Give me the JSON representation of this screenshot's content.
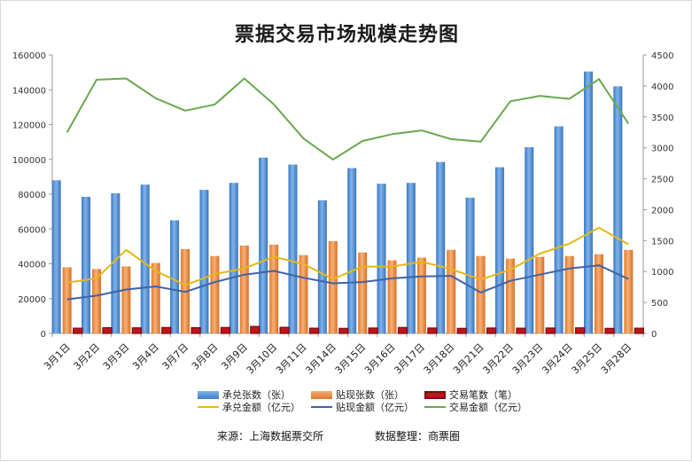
{
  "colors": {
    "acceptance_count": "#4f8fd6",
    "discount_count": "#ee8b3e",
    "trade_count": "#c0141b",
    "acceptance_amount": "#e5b812",
    "discount_amount": "#3f63a8",
    "trade_amount": "#6aa84f"
  },
  "chart_data": {
    "type": "bar",
    "title": "票据交易市场规模走势图",
    "categories": [
      "3月1日",
      "3月2日",
      "3月3日",
      "3月4日",
      "3月7日",
      "3月8日",
      "3月9日",
      "3月10日",
      "3月11日",
      "3月14日",
      "3月15日",
      "3月16日",
      "3月17日",
      "3月18日",
      "3月21日",
      "3月22日",
      "3月23日",
      "3月24日",
      "3月25日",
      "3月28日"
    ],
    "left_axis": {
      "min": 0,
      "max": 160000,
      "step": 20000,
      "ticks": [
        "0",
        "20000",
        "40000",
        "60000",
        "80000",
        "100000",
        "120000",
        "140000",
        "160000"
      ]
    },
    "right_axis": {
      "min": 0,
      "max": 4500,
      "step": 500,
      "ticks": [
        "0",
        "500",
        "1000",
        "1500",
        "2000",
        "2500",
        "3000",
        "3500",
        "4000",
        "4500"
      ]
    },
    "grid": false,
    "legend_position": "bottom",
    "series": [
      {
        "name": "承兑张数（张）",
        "type": "bar",
        "axis": "left",
        "values": [
          88000,
          78500,
          80500,
          85500,
          65000,
          82500,
          86500,
          101000,
          97000,
          76500,
          95000,
          86000,
          86500,
          98500,
          78000,
          95500,
          107000,
          119000,
          150500,
          142000
        ]
      },
      {
        "name": "贴现张数（张）",
        "type": "bar",
        "axis": "left",
        "values": [
          38000,
          37000,
          38500,
          40500,
          48500,
          44500,
          50500,
          51000,
          45000,
          53000,
          46500,
          42000,
          43500,
          48000,
          44500,
          43000,
          44000,
          44500,
          45500,
          48000
        ]
      },
      {
        "name": "交易笔数（笔）",
        "type": "bar",
        "axis": "left",
        "values": [
          3000,
          3300,
          3200,
          3400,
          3300,
          3400,
          4000,
          3500,
          3000,
          2900,
          3100,
          3400,
          3100,
          2900,
          3100,
          3000,
          3100,
          3200,
          2900,
          3000
        ]
      },
      {
        "name": "承兑金额（亿元）",
        "type": "line",
        "axis": "right",
        "values": [
          820,
          890,
          1350,
          1010,
          780,
          960,
          1050,
          1240,
          1120,
          880,
          1080,
          1080,
          1160,
          1040,
          870,
          1030,
          1290,
          1450,
          1710,
          1440
        ]
      },
      {
        "name": "贴现金额（亿元）",
        "type": "line",
        "axis": "right",
        "values": [
          550,
          610,
          710,
          760,
          670,
          830,
          950,
          1010,
          900,
          810,
          830,
          890,
          920,
          930,
          660,
          850,
          950,
          1050,
          1100,
          880
        ]
      },
      {
        "name": "交易金额（亿元）",
        "type": "line",
        "axis": "right",
        "values": [
          3250,
          4100,
          4120,
          3800,
          3600,
          3700,
          4120,
          3700,
          3150,
          2810,
          3110,
          3220,
          3280,
          3140,
          3100,
          3750,
          3840,
          3790,
          4110,
          3390
        ]
      }
    ]
  },
  "footer": {
    "source": "来源：上海数据票交所",
    "compiled_by": "数据整理：商票圈"
  }
}
